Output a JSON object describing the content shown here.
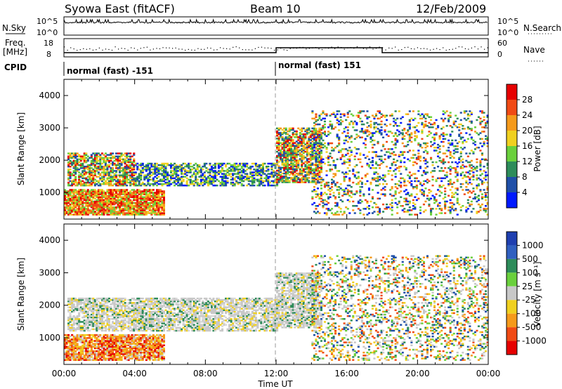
{
  "header": {
    "title": "Syowa East (fitACF)",
    "beam": "Beam 10",
    "date": "12/Feb/2009"
  },
  "top_panels": {
    "nsky_label": "N.Sky",
    "nsky_ticks": [
      "10^5",
      "10^0"
    ],
    "nsearch_label": "N.Search",
    "nsearch_ticks": [
      "10^5",
      "10^0"
    ],
    "freq_label_line1": "Freq.",
    "freq_label_line2": "[MHz]",
    "freq_ticks": [
      "18",
      "8"
    ],
    "nave_label": "Nave",
    "nave_ticks": [
      "60",
      "0"
    ],
    "cpid_label": "CPID",
    "cpid_segments": [
      "normal (fast) -151",
      "normal (fast) 151"
    ]
  },
  "chart_data": [
    {
      "type": "heatmap",
      "name": "power-panel",
      "ylabel": "Slant Range [km]",
      "xlabel": "Time UT",
      "xticks": [
        "00:00",
        "04:00",
        "08:00",
        "12:00",
        "16:00",
        "20:00",
        "00:00"
      ],
      "yticks": [
        "1000",
        "2000",
        "3000",
        "4000"
      ],
      "ylim": [
        180,
        4500
      ],
      "xlim_hours": [
        0,
        24
      ],
      "colorbar": {
        "label": "Power [dB]",
        "ticks": [
          "4",
          "8",
          "12",
          "16",
          "20",
          "24",
          "28"
        ],
        "colors": [
          "#0019ff",
          "#1f4fa8",
          "#2d8c5a",
          "#6ad03c",
          "#f0d020",
          "#f59a1b",
          "#f04a14",
          "#e60000"
        ]
      },
      "regions": [
        {
          "t0": 0.0,
          "t1": 5.6,
          "r0": 300,
          "r1": 1100,
          "level": "high"
        },
        {
          "t0": 0.2,
          "t1": 4.0,
          "r0": 1200,
          "r1": 2200,
          "level": "mid"
        },
        {
          "t0": 4.0,
          "t1": 12.0,
          "r0": 1200,
          "r1": 1900,
          "level": "low"
        },
        {
          "t0": 12.0,
          "t1": 14.5,
          "r0": 1300,
          "r1": 3000,
          "level": "mid"
        },
        {
          "t0": 14.0,
          "t1": 24.0,
          "r0": 300,
          "r1": 3500,
          "level": "scatter"
        }
      ]
    },
    {
      "type": "heatmap",
      "name": "velocity-panel",
      "ylabel": "Slant Range [km]",
      "xlabel": "Time UT",
      "xticks": [
        "00:00",
        "04:00",
        "08:00",
        "12:00",
        "16:00",
        "20:00",
        "00:00"
      ],
      "yticks": [
        "1000",
        "2000",
        "3000",
        "4000"
      ],
      "ylim": [
        180,
        4500
      ],
      "xlim_hours": [
        0,
        24
      ],
      "colorbar": {
        "label": "Velocity [m s⁻¹]",
        "ticks": [
          "1000",
          "500",
          "100",
          "25",
          "-25",
          "-100",
          "-500",
          "-1000"
        ],
        "colors": [
          "#1f3fb0",
          "#3060c0",
          "#2d8c5a",
          "#6ad03c",
          "#c8c8c8",
          "#f0d020",
          "#f59a1b",
          "#f04a14",
          "#e60000"
        ]
      },
      "regions": [
        {
          "t0": 0.0,
          "t1": 5.6,
          "r0": 300,
          "r1": 1100,
          "level": "negative"
        },
        {
          "t0": 0.2,
          "t1": 12.0,
          "r0": 1200,
          "r1": 2200,
          "level": "ground"
        },
        {
          "t0": 12.0,
          "t1": 14.5,
          "r0": 1300,
          "r1": 3000,
          "level": "ground"
        },
        {
          "t0": 14.0,
          "t1": 24.0,
          "r0": 300,
          "r1": 3500,
          "level": "mixed"
        }
      ]
    }
  ]
}
